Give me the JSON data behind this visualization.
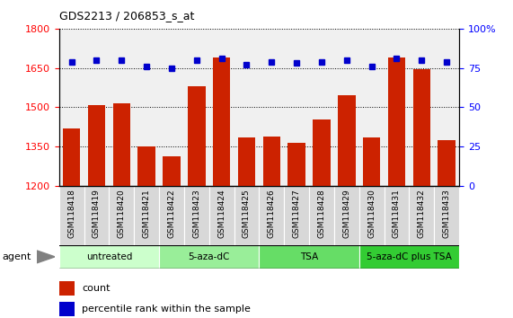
{
  "title": "GDS2213 / 206853_s_at",
  "categories": [
    "GSM118418",
    "GSM118419",
    "GSM118420",
    "GSM118421",
    "GSM118422",
    "GSM118423",
    "GSM118424",
    "GSM118425",
    "GSM118426",
    "GSM118427",
    "GSM118428",
    "GSM118429",
    "GSM118430",
    "GSM118431",
    "GSM118432",
    "GSM118433"
  ],
  "bar_values": [
    1420,
    1510,
    1515,
    1350,
    1315,
    1580,
    1690,
    1385,
    1390,
    1365,
    1455,
    1545,
    1385,
    1690,
    1645,
    1375
  ],
  "percentile_values": [
    79,
    80,
    80,
    76,
    75,
    80,
    81,
    77,
    79,
    78,
    79,
    80,
    76,
    81,
    80,
    79
  ],
  "ylim_left": [
    1200,
    1800
  ],
  "ylim_right": [
    0,
    100
  ],
  "yticks_left": [
    1200,
    1350,
    1500,
    1650,
    1800
  ],
  "yticks_right": [
    0,
    25,
    50,
    75,
    100
  ],
  "bar_color": "#cc2200",
  "dot_color": "#0000cc",
  "background_color": "#ffffff",
  "plot_bg_color": "#f0f0f0",
  "groups": [
    {
      "label": "untreated",
      "start": 0,
      "end": 3,
      "color": "#ccffcc"
    },
    {
      "label": "5-aza-dC",
      "start": 4,
      "end": 7,
      "color": "#99ee99"
    },
    {
      "label": "TSA",
      "start": 8,
      "end": 11,
      "color": "#66dd66"
    },
    {
      "label": "5-aza-dC plus TSA",
      "start": 12,
      "end": 15,
      "color": "#33cc33"
    }
  ],
  "agent_label": "agent",
  "legend_count_label": "count",
  "legend_pct_label": "percentile rank within the sample"
}
